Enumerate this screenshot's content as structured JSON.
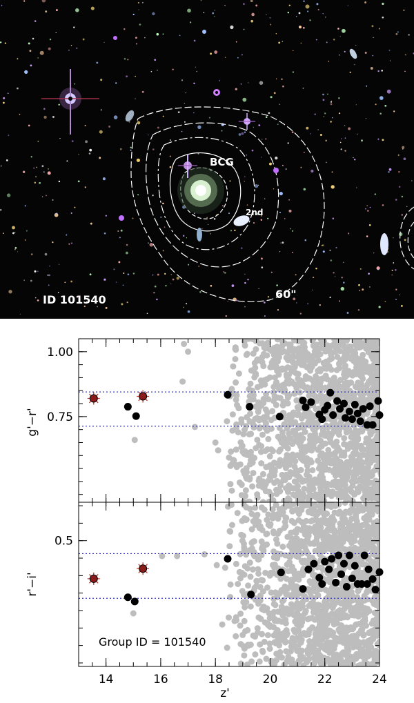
{
  "image": {
    "id_label": "ID  101540",
    "bcg_label": "BCG",
    "second_label": "2nd",
    "scale_label": "60\""
  },
  "colors": {
    "member": "#000000",
    "field": "#bdbdbd",
    "bcg_marker": "#8b1a1a",
    "band_line": "#3333cc"
  },
  "chart_data": [
    {
      "type": "scatter",
      "panel": "top",
      "ylabel": "g'−r'",
      "xlim": [
        13,
        24
      ],
      "ylim": [
        0.42,
        1.05
      ],
      "yticks": [
        {
          "value": 1.0,
          "label": "1.00"
        },
        {
          "value": 0.75,
          "label": "0.75"
        }
      ],
      "band": [
        0.713,
        0.845
      ],
      "bcg_points": [
        [
          13.55,
          0.82
        ],
        [
          15.35,
          0.828
        ]
      ],
      "members": [
        [
          14.8,
          0.788
        ],
        [
          15.1,
          0.752
        ],
        [
          18.45,
          0.834
        ],
        [
          19.25,
          0.788
        ],
        [
          20.35,
          0.75
        ],
        [
          21.2,
          0.812
        ],
        [
          21.3,
          0.786
        ],
        [
          21.5,
          0.806
        ],
        [
          21.8,
          0.758
        ],
        [
          21.9,
          0.74
        ],
        [
          22.0,
          0.776
        ],
        [
          22.1,
          0.792
        ],
        [
          22.2,
          0.842
        ],
        [
          22.3,
          0.756
        ],
        [
          22.45,
          0.81
        ],
        [
          22.55,
          0.78
        ],
        [
          22.7,
          0.8
        ],
        [
          22.75,
          0.745
        ],
        [
          22.9,
          0.77
        ],
        [
          23.0,
          0.74
        ],
        [
          23.1,
          0.796
        ],
        [
          23.2,
          0.762
        ],
        [
          23.3,
          0.732
        ],
        [
          23.4,
          0.78
        ],
        [
          23.55,
          0.718
        ],
        [
          23.65,
          0.79
        ],
        [
          23.75,
          0.718
        ],
        [
          23.95,
          0.81
        ],
        [
          24.0,
          0.756
        ]
      ],
      "field_density_note": "dense grey field galaxies increasing toward faint magnitudes"
    },
    {
      "type": "scatter",
      "panel": "bottom",
      "ylabel": "r'−i'",
      "xlabel": "z'",
      "xlim": [
        13,
        24
      ],
      "ylim": [
        0.14,
        0.61
      ],
      "yticks": [
        {
          "value": 0.5,
          "label": "0.5"
        }
      ],
      "xticks": [
        14,
        16,
        18,
        20,
        22,
        24
      ],
      "band": [
        0.335,
        0.463
      ],
      "bcg_points": [
        [
          13.55,
          0.391
        ],
        [
          15.35,
          0.42
        ]
      ],
      "members": [
        [
          14.8,
          0.338
        ],
        [
          15.05,
          0.326
        ],
        [
          18.45,
          0.448
        ],
        [
          19.3,
          0.346
        ],
        [
          20.4,
          0.409
        ],
        [
          21.2,
          0.362
        ],
        [
          21.4,
          0.418
        ],
        [
          21.6,
          0.434
        ],
        [
          21.8,
          0.394
        ],
        [
          21.9,
          0.376
        ],
        [
          22.0,
          0.44
        ],
        [
          22.15,
          0.418
        ],
        [
          22.25,
          0.448
        ],
        [
          22.4,
          0.38
        ],
        [
          22.5,
          0.458
        ],
        [
          22.6,
          0.404
        ],
        [
          22.7,
          0.434
        ],
        [
          22.8,
          0.368
        ],
        [
          22.9,
          0.458
        ],
        [
          23.0,
          0.392
        ],
        [
          23.1,
          0.428
        ],
        [
          23.2,
          0.376
        ],
        [
          23.35,
          0.376
        ],
        [
          23.45,
          0.458
        ],
        [
          23.55,
          0.376
        ],
        [
          23.6,
          0.418
        ],
        [
          23.75,
          0.39
        ],
        [
          23.85,
          0.36
        ],
        [
          24.0,
          0.41
        ]
      ],
      "annotation": "Group ID  =  101540"
    }
  ]
}
